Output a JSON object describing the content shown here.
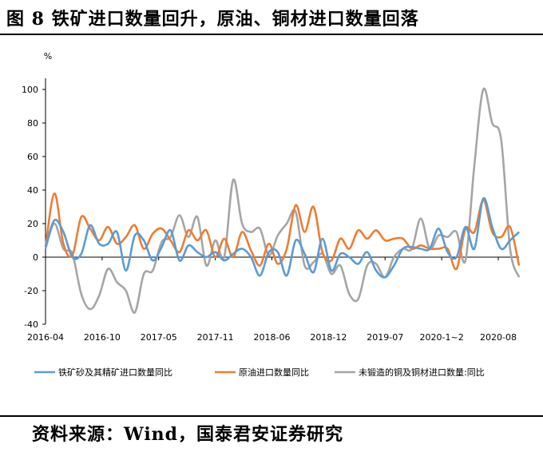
{
  "title": "图 8 铁矿进口数量回升，原油、铜材进口数量回落",
  "source": "资料来源：Wind，国泰君安证券研究",
  "chart_data": {
    "type": "line",
    "unit": "%",
    "ylim": [
      -40,
      110
    ],
    "yticks": [
      -40,
      -20,
      0,
      20,
      40,
      60,
      80,
      100
    ],
    "xticks": [
      "2016-04",
      "2016-10",
      "2017-05",
      "2017-11",
      "2018-06",
      "2018-12",
      "2019-07",
      "2020-1~2",
      "2020-08"
    ],
    "legend_position": "bottom",
    "x": [
      0,
      1,
      2,
      3,
      4,
      5,
      6,
      7,
      8,
      9,
      10,
      11,
      12,
      13,
      14,
      15,
      16,
      17,
      18,
      19,
      20,
      21,
      22,
      23,
      24,
      25,
      26,
      27,
      28,
      29,
      30,
      31,
      32,
      33,
      34,
      35,
      36,
      37,
      38,
      39,
      40,
      41,
      42,
      43,
      44,
      45,
      46,
      47,
      48,
      49,
      50,
      51,
      52,
      53
    ],
    "series": [
      {
        "name": "铁矿砂及其精矿进口数量同比",
        "color": "#5b9bd5",
        "values": [
          6,
          22,
          15,
          0,
          2,
          19,
          8,
          8,
          15,
          -8,
          13,
          10,
          -2,
          6,
          16,
          -2,
          7,
          3,
          0,
          3,
          -2,
          2,
          5,
          0,
          -11,
          3,
          3,
          -11,
          10,
          2,
          -9,
          11,
          -8,
          2,
          0,
          -4,
          3,
          -8,
          -12,
          -5,
          5,
          6,
          5,
          5,
          17,
          3,
          0,
          18,
          5,
          35,
          18,
          5,
          10,
          15
        ]
      },
      {
        "name": "原油进口数量同比",
        "color": "#ed7d31",
        "values": [
          6,
          38,
          8,
          1,
          24,
          17,
          10,
          18,
          8,
          12,
          19,
          5,
          14,
          17,
          10,
          3,
          16,
          10,
          16,
          0,
          11,
          0,
          15,
          4,
          -5,
          8,
          -4,
          5,
          31,
          15,
          30,
          3,
          -2,
          11,
          5,
          16,
          11,
          16,
          10,
          11,
          11,
          5,
          7,
          5,
          5,
          5,
          -7,
          17,
          15,
          34,
          15,
          12,
          18,
          -5
        ]
      },
      {
        "name": "未锻造的铜及铜材进口数量:同比",
        "color": "#a5a5a5",
        "values": [
          5,
          20,
          5,
          2,
          -22,
          -31,
          -23,
          -7,
          -15,
          -20,
          -33,
          -10,
          -8,
          9,
          12,
          25,
          12,
          24,
          -5,
          10,
          0,
          46,
          20,
          15,
          17,
          1,
          13,
          20,
          27,
          -5,
          -3,
          2,
          -10,
          -5,
          -22,
          -25,
          -5,
          -4,
          -12,
          0,
          5,
          5,
          23,
          5,
          13,
          12,
          15,
          -2,
          55,
          100,
          80,
          70,
          5,
          -12
        ]
      }
    ]
  }
}
